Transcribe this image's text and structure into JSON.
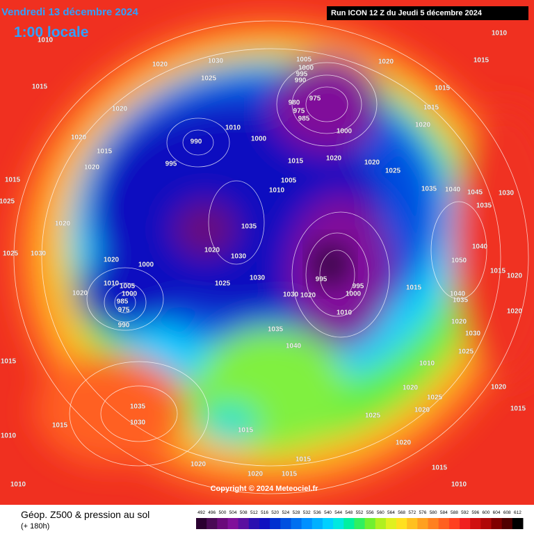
{
  "header": {
    "date": "Vendredi 13 décembre 2024",
    "time": "1:00 locale",
    "run": "Run ICON 12 Z du Jeudi 5 décembre 2024"
  },
  "footer": {
    "title": "Géop. Z500 & pression au sol",
    "lead": "(+ 180h)",
    "copyright": "Copyright © 2024 Meteociel.fr"
  },
  "legend": {
    "values": [
      492,
      496,
      500,
      504,
      508,
      512,
      516,
      520,
      524,
      528,
      532,
      536,
      540,
      544,
      548,
      552,
      556,
      560,
      564,
      568,
      572,
      576,
      580,
      584,
      588,
      592,
      596,
      600,
      604,
      608,
      612
    ],
    "colors": [
      "#2a0030",
      "#4a0a55",
      "#6a0a7a",
      "#80109a",
      "#5a10a0",
      "#2a10b0",
      "#1010c0",
      "#0030d0",
      "#0050e0",
      "#0070f0",
      "#0090ff",
      "#00b0ff",
      "#00d0ff",
      "#00e8e0",
      "#00f0a0",
      "#30f060",
      "#70f030",
      "#b0f020",
      "#e0f020",
      "#ffe020",
      "#ffc020",
      "#ffa020",
      "#ff8020",
      "#ff6020",
      "#ff4020",
      "#f02020",
      "#d01010",
      "#b00808",
      "#800000",
      "#500000",
      "#000000"
    ]
  },
  "isobar_labels": [
    "1010",
    "1020",
    "1030",
    "1025",
    "1015",
    "1020",
    "1010",
    "990",
    "995",
    "1000",
    "1005",
    "1000",
    "995",
    "990",
    "975",
    "980",
    "975",
    "985",
    "1000",
    "1020",
    "1010",
    "1015",
    "1015",
    "1015",
    "1020",
    "1015",
    "1020",
    "1020",
    "1015",
    "1025",
    "1020",
    "1030",
    "1025",
    "1015",
    "1005",
    "1010",
    "1020",
    "1020",
    "1025",
    "1035",
    "1040",
    "1045",
    "1035",
    "1020",
    "1030",
    "1020",
    "1000",
    "995",
    "995",
    "1000",
    "1010",
    "1030",
    "1020",
    "1030",
    "1025",
    "1010",
    "1005",
    "1000",
    "985",
    "975",
    "990",
    "1020",
    "1035",
    "1040",
    "1010",
    "1020",
    "1025",
    "1025",
    "1020",
    "1020",
    "1015",
    "1015",
    "1015",
    "1020",
    "1035",
    "1030",
    "1015",
    "1010",
    "1010",
    "1020",
    "1015",
    "1020",
    "1015",
    "1020",
    "1030",
    "1035",
    "1040",
    "1015",
    "1025",
    "1020",
    "1030",
    "1020",
    "1015",
    "1015",
    "1010",
    "1035",
    "1040",
    "1050"
  ]
}
